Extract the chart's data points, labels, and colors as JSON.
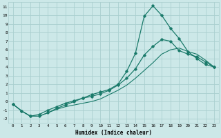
{
  "title": "",
  "xlabel": "Humidex (Indice chaleur)",
  "ylabel": "",
  "bg_color": "#cce8e8",
  "grid_color": "#aacfcf",
  "line_color": "#1a7a6a",
  "xlim": [
    -0.5,
    23.5
  ],
  "ylim": [
    -2.5,
    11.5
  ],
  "xticks": [
    0,
    1,
    2,
    3,
    4,
    5,
    6,
    7,
    8,
    9,
    10,
    11,
    12,
    13,
    14,
    15,
    16,
    17,
    18,
    19,
    20,
    21,
    22,
    23
  ],
  "yticks": [
    -2,
    -1,
    0,
    1,
    2,
    3,
    4,
    5,
    6,
    7,
    8,
    9,
    10,
    11
  ],
  "series": [
    {
      "x": [
        0,
        1,
        2,
        3,
        4,
        5,
        6,
        7,
        8,
        9,
        10,
        11,
        12,
        13,
        14,
        15,
        16,
        17,
        18,
        19,
        20,
        21,
        22,
        23
      ],
      "y": [
        -0.3,
        -1.1,
        -1.7,
        -1.7,
        -1.3,
        -0.9,
        -0.6,
        -0.4,
        -0.2,
        0.0,
        0.3,
        0.8,
        1.3,
        1.9,
        2.7,
        3.6,
        4.5,
        5.5,
        6.0,
        6.2,
        5.8,
        5.5,
        4.8,
        4.0
      ],
      "marker": null,
      "lw": 0.8
    },
    {
      "x": [
        0,
        1,
        2,
        3,
        4,
        5,
        6,
        7,
        8,
        9,
        10,
        11,
        12,
        13,
        14,
        15,
        16,
        17,
        18,
        19,
        20,
        21,
        22,
        23
      ],
      "y": [
        -0.3,
        -1.1,
        -1.7,
        -1.5,
        -1.0,
        -0.6,
        -0.2,
        0.1,
        0.4,
        0.6,
        0.9,
        1.3,
        1.9,
        2.7,
        3.8,
        5.4,
        6.4,
        7.2,
        7.0,
        5.9,
        5.5,
        5.2,
        4.6,
        4.0
      ],
      "marker": "D",
      "lw": 0.9,
      "ms": 1.8
    },
    {
      "x": [
        0,
        1,
        2,
        3,
        4,
        5,
        6,
        7,
        8,
        9,
        10,
        11,
        12,
        13,
        14,
        15,
        16,
        17,
        18,
        19,
        20,
        21,
        22,
        23
      ],
      "y": [
        -0.3,
        -1.1,
        -1.7,
        -1.7,
        -1.3,
        -0.8,
        -0.4,
        0.0,
        0.4,
        0.8,
        1.1,
        1.4,
        2.0,
        3.5,
        5.6,
        9.9,
        11.1,
        10.0,
        8.5,
        7.3,
        5.8,
        5.0,
        4.3,
        4.0
      ],
      "marker": "D",
      "lw": 0.9,
      "ms": 1.8
    }
  ]
}
